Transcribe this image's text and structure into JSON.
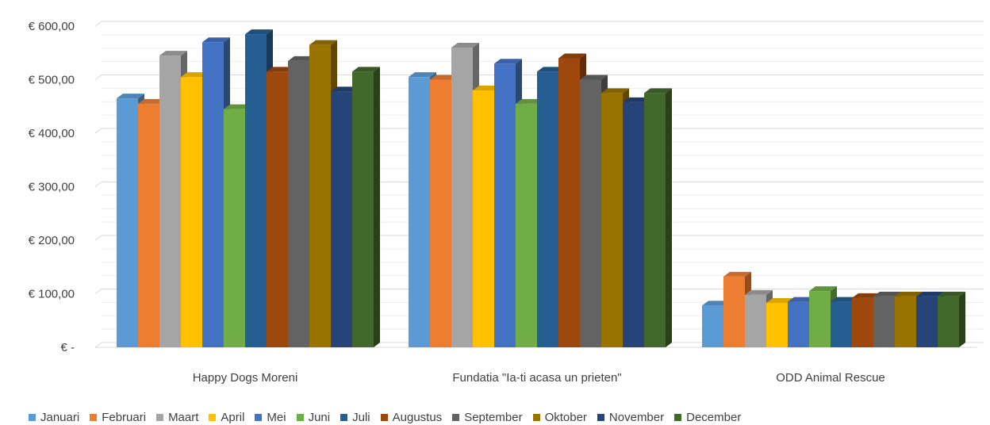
{
  "chart_data": {
    "type": "bar",
    "style": "3d-clustered-column",
    "categories": [
      "Happy Dogs Moreni",
      "Fundatia \"Ia-ti acasa un prieten\"",
      "ODD Animal Rescue"
    ],
    "y_tick_labels": [
      "€ -",
      "€ 100,00",
      "€ 200,00",
      "€ 300,00",
      "€ 400,00",
      "€ 500,00",
      "€ 600,00"
    ],
    "ylim": [
      0,
      600
    ],
    "grid": true,
    "legend_position": "bottom",
    "series": [
      {
        "name": "Januari",
        "color": "#5b9bd5",
        "values": [
          465,
          505,
          78
        ]
      },
      {
        "name": "Februari",
        "color": "#ed7d31",
        "values": [
          455,
          500,
          132
        ]
      },
      {
        "name": "Maart",
        "color": "#a5a5a5",
        "values": [
          545,
          560,
          98
        ]
      },
      {
        "name": "April",
        "color": "#ffc000",
        "values": [
          505,
          480,
          83
        ]
      },
      {
        "name": "Mei",
        "color": "#4472c4",
        "values": [
          570,
          530,
          85
        ]
      },
      {
        "name": "Juni",
        "color": "#70ad47",
        "values": [
          445,
          455,
          105
        ]
      },
      {
        "name": "Juli",
        "color": "#255e91",
        "values": [
          585,
          515,
          85
        ]
      },
      {
        "name": "Augustus",
        "color": "#9e480e",
        "values": [
          515,
          540,
          92
        ]
      },
      {
        "name": "September",
        "color": "#636363",
        "values": [
          535,
          500,
          95
        ]
      },
      {
        "name": "Oktober",
        "color": "#997300",
        "values": [
          565,
          475,
          95
        ]
      },
      {
        "name": "November",
        "color": "#264478",
        "values": [
          478,
          458,
          95
        ]
      },
      {
        "name": "December",
        "color": "#43682b",
        "values": [
          515,
          475,
          95
        ]
      }
    ]
  }
}
